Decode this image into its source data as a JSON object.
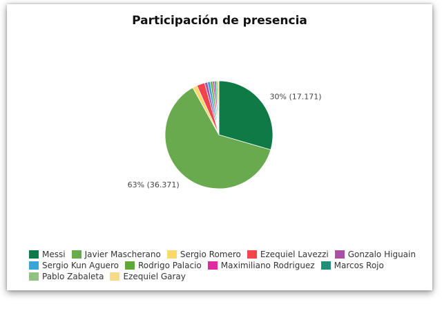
{
  "chart_data": {
    "type": "pie",
    "title": "Participación de presencia",
    "slices": [
      {
        "name": "Messi",
        "value": 17.171,
        "label": "30% (17.171)",
        "color": "#0e7a46"
      },
      {
        "name": "Javier Mascherano",
        "value": 36.371,
        "label": "63% (36.371)",
        "color": "#6aaa4f"
      },
      {
        "name": "Sergio Romero",
        "value": 0.8,
        "color": "#fbd86a"
      },
      {
        "name": "Ezequiel Lavezzi",
        "value": 1.4,
        "color": "#f4444b"
      },
      {
        "name": "Gonzalo Higuain",
        "value": 0.5,
        "color": "#a94ea6"
      },
      {
        "name": "Sergio Kun Aguero",
        "value": 0.5,
        "color": "#39a5d7"
      },
      {
        "name": "Rodrigo Palacio",
        "value": 0.4,
        "color": "#5ca838"
      },
      {
        "name": "Maximiliano Rodriguez",
        "value": 0.3,
        "color": "#df2aa2"
      },
      {
        "name": "Marcos Rojo",
        "value": 0.3,
        "color": "#1f8f7a"
      },
      {
        "name": "Pablo Zabaleta",
        "value": 0.3,
        "color": "#8fc283"
      },
      {
        "name": "Ezequiel Garay",
        "value": 0.2,
        "color": "#f9d98a"
      }
    ],
    "legend_rows": [
      [
        "Messi",
        "Javier Mascherano",
        "Sergio Romero",
        "Ezequiel Lavezzi",
        "Gonzalo Higuain"
      ],
      [
        "Sergio Kun Aguero",
        "Rodrigo Palacio",
        "Maximiliano Rodriguez",
        "Marcos Rojo"
      ],
      [
        "Pablo Zabaleta",
        "Ezequiel Garay"
      ]
    ],
    "legend_position": "bottom"
  }
}
